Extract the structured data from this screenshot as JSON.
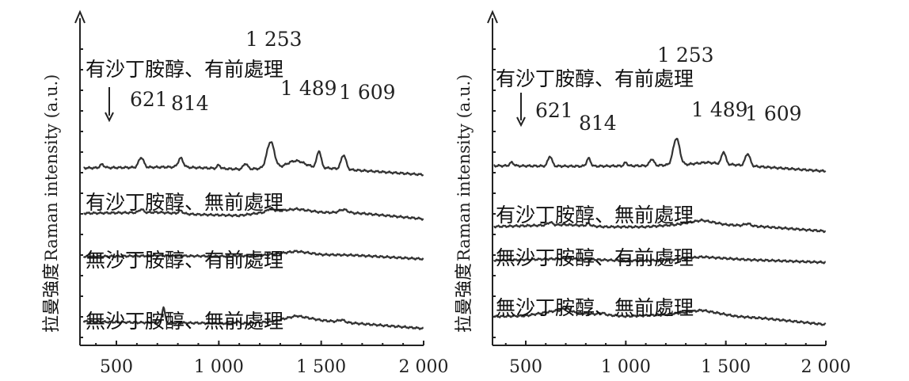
{
  "chart_data": [
    {
      "type": "line",
      "panel": "left",
      "ylabel_cn": "拉曼強度",
      "ylabel": "Raman intensity (a.u.)",
      "xlim": [
        300,
        2000
      ],
      "x_ticks": [
        {
          "value": 500,
          "label": "500"
        },
        {
          "value": 1000,
          "label": "1 000"
        },
        {
          "value": 1500,
          "label": "1 500"
        },
        {
          "value": 2000,
          "label": "2 000"
        }
      ],
      "peak_labels": [
        {
          "x": 621,
          "label": "621"
        },
        {
          "x": 814,
          "label": "814"
        },
        {
          "x": 1253,
          "label": "1 253"
        },
        {
          "x": 1489,
          "label": "1 489"
        },
        {
          "x": 1609,
          "label": "1 609"
        }
      ],
      "arrow_x": 430,
      "series": [
        {
          "name": "有沙丁胺醇、有前處理",
          "offset": 3.1,
          "baseline": [
            [
              300,
              1.2
            ],
            [
              800,
              1.3
            ],
            [
              1100,
              1.1
            ],
            [
              1300,
              1.2
            ],
            [
              1400,
              1.4
            ],
            [
              1600,
              1.1
            ],
            [
              2000,
              0.6
            ]
          ],
          "peaks": [
            [
              621,
              0.9,
              12
            ],
            [
              814,
              0.8,
              12
            ],
            [
              430,
              0.3,
              10
            ],
            [
              1000,
              0.3,
              8
            ],
            [
              1130,
              0.5,
              10
            ],
            [
              1253,
              2.4,
              18
            ],
            [
              1489,
              1.5,
              10
            ],
            [
              1609,
              1.3,
              12
            ],
            [
              1370,
              0.5,
              40
            ]
          ]
        },
        {
          "name": "有沙丁胺醇、無前處理",
          "offset": 2.0,
          "baseline": [
            [
              300,
              0.9
            ],
            [
              700,
              1.0
            ],
            [
              900,
              0.8
            ],
            [
              1100,
              0.7
            ],
            [
              1200,
              0.95
            ],
            [
              1380,
              1.3
            ],
            [
              1500,
              1.0
            ],
            [
              1700,
              0.9
            ],
            [
              2000,
              0.4
            ]
          ],
          "peaks": [
            [
              621,
              0.3,
              10
            ],
            [
              814,
              0.25,
              10
            ],
            [
              1253,
              0.3,
              15
            ],
            [
              1609,
              0.3,
              20
            ]
          ]
        },
        {
          "name": "無沙丁胺醇、有前處理",
          "offset": 1.0,
          "baseline": [
            [
              300,
              0.7
            ],
            [
              700,
              0.8
            ],
            [
              1000,
              0.75
            ],
            [
              1200,
              0.8
            ],
            [
              1380,
              1.2
            ],
            [
              1500,
              0.9
            ],
            [
              1650,
              0.85
            ],
            [
              2000,
              0.5
            ]
          ],
          "peaks": []
        },
        {
          "name": "無沙丁胺醇、無前處理",
          "offset": 0.0,
          "baseline": [
            [
              300,
              0.95
            ],
            [
              600,
              0.85
            ],
            [
              900,
              0.8
            ],
            [
              1100,
              0.75
            ],
            [
              1250,
              0.9
            ],
            [
              1380,
              1.45
            ],
            [
              1500,
              1.05
            ],
            [
              1650,
              0.8
            ],
            [
              2000,
              0.3
            ]
          ],
          "peaks": [
            [
              730,
              1.4,
              7
            ],
            [
              1090,
              0.2,
              8
            ],
            [
              1600,
              0.2,
              15
            ]
          ]
        }
      ]
    },
    {
      "type": "line",
      "panel": "right",
      "ylabel_cn": "拉曼強度",
      "ylabel": "Raman intensity (a.u.)",
      "xlim": [
        300,
        2000
      ],
      "x_ticks": [
        {
          "value": 500,
          "label": "500"
        },
        {
          "value": 1000,
          "label": "1 000"
        },
        {
          "value": 1500,
          "label": "1 500"
        },
        {
          "value": 2000,
          "label": "2 000"
        }
      ],
      "peak_labels": [
        {
          "x": 621,
          "label": "621"
        },
        {
          "x": 814,
          "label": "814"
        },
        {
          "x": 1253,
          "label": "1 253"
        },
        {
          "x": 1489,
          "label": "1 489"
        },
        {
          "x": 1609,
          "label": "1 609"
        }
      ],
      "arrow_x": 430,
      "series": [
        {
          "name": "有沙丁胺醇、有前處理",
          "offset": 3.1,
          "baseline": [
            [
              300,
              1.2
            ],
            [
              800,
              1.15
            ],
            [
              1100,
              1.2
            ],
            [
              1300,
              1.3
            ],
            [
              1400,
              1.5
            ],
            [
              1600,
              1.2
            ],
            [
              2000,
              0.7
            ]
          ],
          "peaks": [
            [
              621,
              0.9,
              10
            ],
            [
              814,
              0.7,
              10
            ],
            [
              430,
              0.3,
              10
            ],
            [
              1000,
              0.3,
              8
            ],
            [
              1130,
              0.6,
              10
            ],
            [
              1253,
              2.4,
              16
            ],
            [
              1489,
              1.1,
              10
            ],
            [
              1609,
              1.1,
              12
            ]
          ]
        },
        {
          "name": "有沙丁胺醇、無前處理",
          "offset": 2.0,
          "baseline": [
            [
              300,
              0.9
            ],
            [
              700,
              1.1
            ],
            [
              900,
              0.9
            ],
            [
              1100,
              0.9
            ],
            [
              1250,
              1.1
            ],
            [
              1380,
              1.5
            ],
            [
              1500,
              1.1
            ],
            [
              1700,
              0.9
            ],
            [
              2000,
              0.5
            ]
          ],
          "peaks": [
            [
              621,
              0.25,
              12
            ],
            [
              814,
              0.2,
              10
            ],
            [
              1609,
              0.2,
              15
            ]
          ]
        },
        {
          "name": "無沙丁胺醇、有前處理",
          "offset": 1.0,
          "baseline": [
            [
              300,
              0.7
            ],
            [
              700,
              0.9
            ],
            [
              1000,
              0.7
            ],
            [
              1200,
              0.75
            ],
            [
              1380,
              1.05
            ],
            [
              1600,
              0.8
            ],
            [
              2000,
              0.55
            ]
          ],
          "peaks": []
        },
        {
          "name": "無沙丁胺醇、無前處理",
          "offset": 0.0,
          "baseline": [
            [
              300,
              1.0
            ],
            [
              500,
              1.1
            ],
            [
              650,
              1.55
            ],
            [
              800,
              1.3
            ],
            [
              1000,
              1.05
            ],
            [
              1200,
              1.2
            ],
            [
              1380,
              1.6
            ],
            [
              1550,
              1.05
            ],
            [
              1700,
              0.85
            ],
            [
              2000,
              0.3
            ]
          ],
          "peaks": [
            [
              700,
              0.3,
              20
            ],
            [
              880,
              0.15,
              15
            ]
          ]
        }
      ]
    }
  ]
}
